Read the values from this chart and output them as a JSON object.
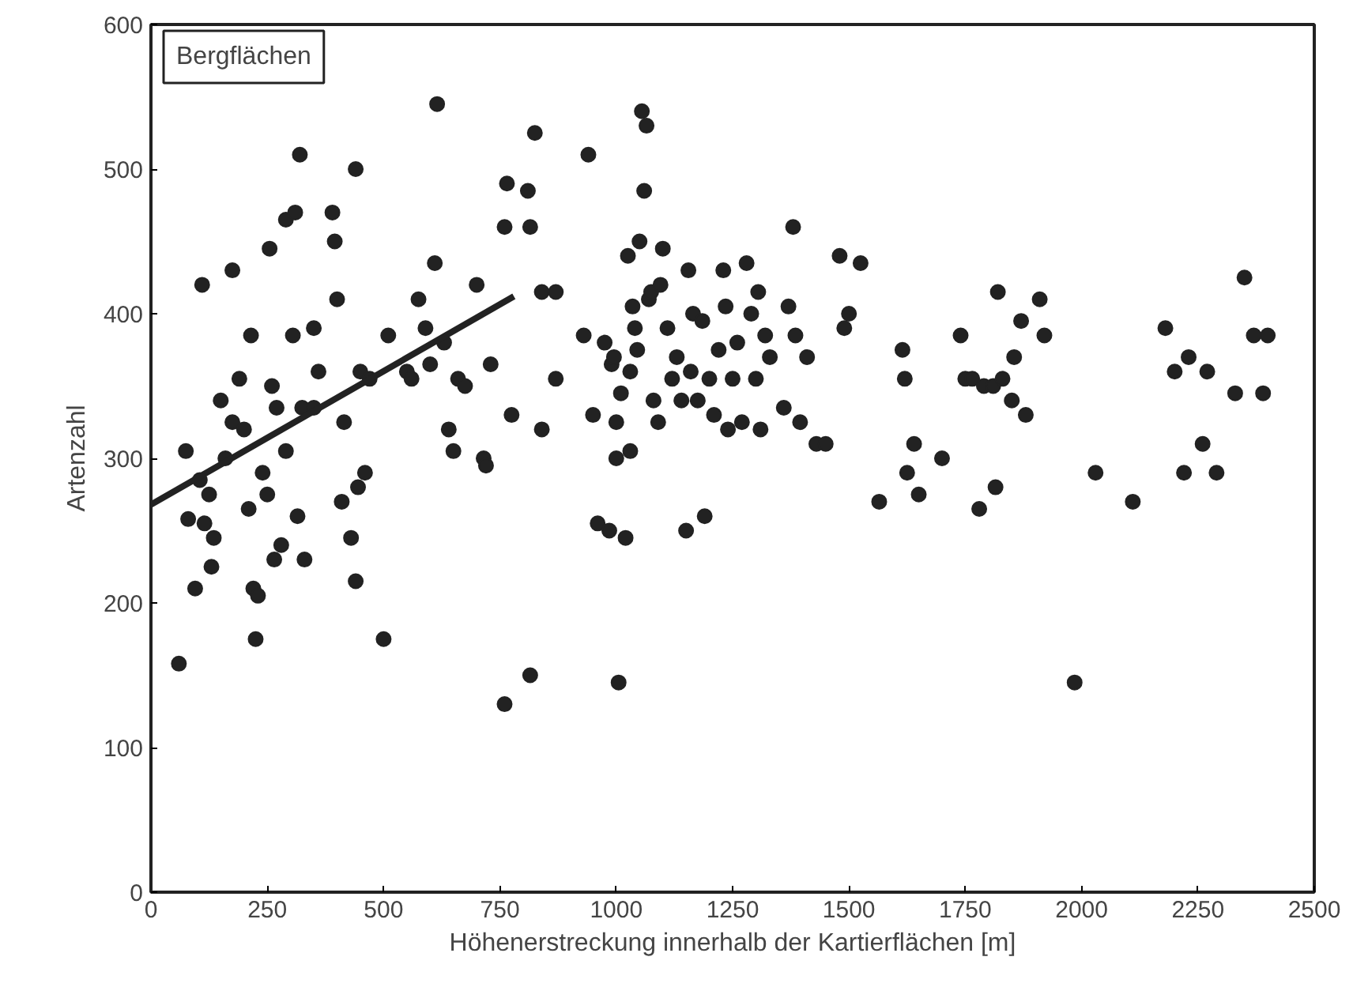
{
  "chart_data": {
    "type": "scatter",
    "xlabel": "Höhenerstreckung innerhalb der Kartierflächen [m]",
    "ylabel": "Artenzahl",
    "annotations": [
      "Bergflächen"
    ],
    "xlim": [
      0,
      2500
    ],
    "ylim": [
      0,
      600
    ],
    "xticks": [
      0,
      250,
      500,
      750,
      1000,
      1250,
      1500,
      1750,
      2000,
      2250,
      2500
    ],
    "yticks": [
      0,
      100,
      200,
      300,
      400,
      500,
      600
    ],
    "marker": "circle",
    "series": [
      {
        "color": "#222222",
        "x": [
          60,
          75,
          80,
          95,
          105,
          110,
          115,
          125,
          130,
          135,
          150,
          160,
          175,
          175,
          190,
          200,
          210,
          215,
          220,
          225,
          230,
          240,
          250,
          255,
          260,
          265,
          270,
          280,
          290,
          290,
          305,
          310,
          315,
          320,
          325,
          330,
          350,
          350,
          360,
          390,
          395,
          400,
          410,
          415,
          430,
          440,
          440,
          445,
          450,
          460,
          470,
          500,
          510,
          550,
          560,
          575,
          590,
          600,
          610,
          615,
          630,
          640,
          650,
          660,
          675,
          700,
          715,
          720,
          730,
          760,
          765,
          760,
          775,
          810,
          815,
          815,
          825,
          840,
          840,
          870,
          870,
          930,
          940,
          950,
          960,
          975,
          985,
          990,
          995,
          1000,
          1000,
          1005,
          1010,
          1020,
          1025,
          1030,
          1030,
          1035,
          1040,
          1045,
          1050,
          1055,
          1060,
          1065,
          1070,
          1075,
          1080,
          1090,
          1095,
          1100,
          1110,
          1120,
          1130,
          1140,
          1150,
          1155,
          1160,
          1165,
          1175,
          1185,
          1190,
          1200,
          1210,
          1220,
          1230,
          1235,
          1240,
          1250,
          1260,
          1270,
          1280,
          1290,
          1300,
          1305,
          1310,
          1320,
          1330,
          1360,
          1370,
          1380,
          1385,
          1395,
          1410,
          1430,
          1450,
          1480,
          1490,
          1500,
          1525,
          1565,
          1615,
          1620,
          1625,
          1640,
          1650,
          1700,
          1740,
          1750,
          1765,
          1780,
          1790,
          1810,
          1815,
          1820,
          1830,
          1850,
          1855,
          1870,
          1880,
          1910,
          1920,
          1985,
          2030,
          2110,
          2180,
          2200,
          2220,
          2230,
          2260,
          2270,
          2290,
          2330,
          2350,
          2370,
          2390,
          2400
        ],
        "values": [
          158,
          305,
          258,
          210,
          285,
          420,
          255,
          275,
          225,
          245,
          340,
          300,
          430,
          325,
          355,
          320,
          265,
          385,
          210,
          175,
          205,
          290,
          275,
          445,
          350,
          230,
          335,
          240,
          465,
          305,
          385,
          470,
          260,
          510,
          335,
          230,
          390,
          335,
          360,
          470,
          450,
          410,
          270,
          325,
          245,
          500,
          215,
          280,
          360,
          290,
          355,
          175,
          385,
          360,
          355,
          410,
          390,
          365,
          435,
          545,
          380,
          320,
          305,
          355,
          350,
          420,
          300,
          295,
          365,
          460,
          490,
          130,
          330,
          485,
          460,
          150,
          525,
          415,
          320,
          355,
          415,
          385,
          510,
          330,
          255,
          380,
          250,
          365,
          370,
          325,
          300,
          145,
          345,
          245,
          440,
          305,
          360,
          405,
          390,
          375,
          450,
          540,
          485,
          530,
          410,
          415,
          340,
          325,
          420,
          445,
          390,
          355,
          370,
          340,
          250,
          430,
          360,
          400,
          340,
          395,
          260,
          355,
          330,
          375,
          430,
          405,
          320,
          355,
          380,
          325,
          435,
          400,
          355,
          415,
          320,
          385,
          370,
          335,
          405,
          460,
          385,
          325,
          370,
          310,
          310,
          440,
          390,
          400,
          435,
          270,
          375,
          355,
          290,
          310,
          275,
          300,
          385,
          355,
          355,
          265,
          350,
          350,
          280,
          415,
          355,
          340,
          370,
          395,
          330,
          410,
          385,
          145,
          290,
          270,
          390,
          360,
          290,
          370,
          310,
          360,
          290,
          345,
          425,
          385,
          345,
          385
        ]
      },
      {
        "type": "line",
        "color": "#222222",
        "marker": "none",
        "line_style": "solid",
        "x": [
          0,
          780
        ],
        "values": [
          268,
          412
        ]
      }
    ]
  }
}
